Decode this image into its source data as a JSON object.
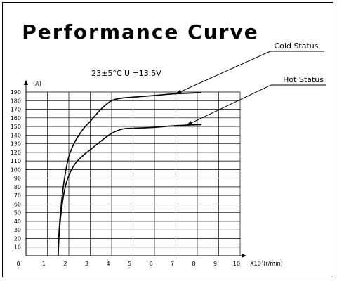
{
  "chart_data": {
    "type": "line",
    "title": "Performance Curve",
    "condition": "23±5°C   U  =13.5V",
    "ylabel": "(A)",
    "xlabel": "X10³(r/min)",
    "x_ticks": [
      "0",
      "1",
      "2",
      "3",
      "4",
      "5",
      "6",
      "7",
      "8",
      "9",
      "10"
    ],
    "y_ticks": [
      "10",
      "20",
      "30",
      "40",
      "50",
      "60",
      "70",
      "80",
      "90",
      "100",
      "110",
      "120",
      "130",
      "140",
      "150",
      "160",
      "170",
      "180",
      "190"
    ],
    "xlim": [
      0,
      10
    ],
    "ylim": [
      0,
      190
    ],
    "grid": true,
    "series": [
      {
        "name": "Cold Status",
        "x": [
          1.5,
          1.55,
          1.65,
          1.8,
          2.0,
          2.3,
          2.7,
          3.0,
          3.5,
          4.0,
          4.5,
          5.0,
          6.0,
          7.0,
          8.0,
          8.2
        ],
        "y": [
          0,
          30,
          60,
          90,
          115,
          133,
          148,
          156,
          170,
          180,
          183,
          184,
          186,
          188,
          189,
          189
        ]
      },
      {
        "name": "Hot Status",
        "x": [
          1.5,
          1.55,
          1.65,
          1.8,
          2.0,
          2.3,
          2.7,
          3.0,
          3.5,
          4.0,
          4.5,
          5.0,
          6.0,
          7.0,
          8.0,
          8.2
        ],
        "y": [
          0,
          25,
          52,
          76,
          93,
          107,
          117,
          123,
          133,
          142,
          147,
          148,
          149,
          151,
          152,
          152
        ]
      }
    ]
  }
}
